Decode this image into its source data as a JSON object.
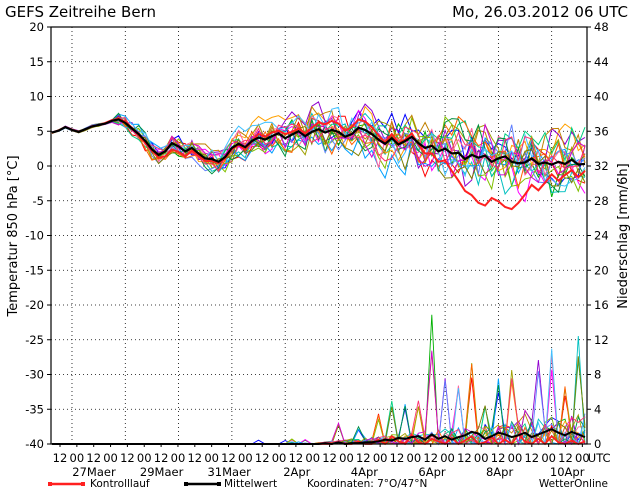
{
  "header": {
    "title": "GEFS  Zeitreihe  Bern",
    "datetime": "Mo, 26.03.2012  06  UTC"
  },
  "footer": {
    "control_label": "Kontrolllauf",
    "mean_label": "Mittelwert",
    "coords": "Koordinaten:  7°O/47°N",
    "brand": "WetterOnline"
  },
  "chart_data": {
    "type": "line",
    "axes": {
      "left": {
        "label": "Temperatur  850  hPa  [°C]",
        "range": [
          -40,
          20
        ],
        "ticks": [
          20,
          15,
          10,
          5,
          0,
          -5,
          -10,
          -15,
          -20,
          -25,
          -30,
          -35,
          -40
        ]
      },
      "right": {
        "label": "Niederschlag  [mm/6h]",
        "range": [
          0,
          48
        ],
        "ticks": [
          48,
          44,
          40,
          36,
          32,
          28,
          24,
          20,
          16,
          12,
          8,
          4,
          0
        ]
      },
      "x": {
        "hour_labels": [
          "12",
          "00",
          "12",
          "00",
          "12",
          "00",
          "12",
          "00",
          "12",
          "00",
          "12",
          "00",
          "12",
          "00",
          "12",
          "00",
          "12",
          "00",
          "12",
          "00",
          "12",
          "00",
          "12",
          "00",
          "12",
          "00",
          "12",
          "00",
          "12",
          "00",
          "12",
          "00",
          "UTC"
        ],
        "date_labels": [
          "27Maer",
          "29Maer",
          "31Maer",
          "2Apr",
          "4Apr",
          "6Apr",
          "8Apr",
          "10Apr"
        ]
      },
      "grid": "dotted"
    },
    "steps_per_day": 4,
    "temperature_ensemble": {
      "colors": [
        "#ff0000",
        "#0000ff",
        "#00b000",
        "#ff00ff",
        "#00c0c0",
        "#ffa000",
        "#9000d0",
        "#80c000",
        "#00a0ff",
        "#c08000",
        "#ff60a0",
        "#00d080",
        "#a0a000",
        "#6080ff",
        "#ff6000",
        "#009040",
        "#d000d0",
        "#40c0ff",
        "#808000",
        "#ff3070"
      ],
      "mean": [
        4.8,
        5.1,
        5.6,
        5.2,
        4.9,
        5.3,
        5.7,
        5.9,
        6.1,
        6.5,
        6.7,
        6.2,
        5.4,
        4.6,
        3.6,
        2.4,
        1.6,
        2.1,
        3.3,
        2.8,
        2.1,
        2.6,
        1.8,
        1.1,
        1.0,
        0.6,
        1.3,
        2.6,
        3.2,
        2.7,
        3.6,
        4.1,
        3.8,
        4.3,
        4.7,
        4.0,
        4.5,
        5.0,
        4.3,
        4.9,
        5.3,
        4.8,
        5.2,
        4.9,
        4.2,
        4.6,
        5.5,
        5.2,
        4.6,
        3.8,
        3.2,
        4.0,
        3.1,
        3.6,
        4.2,
        3.3,
        2.6,
        2.9,
        2.1,
        2.5,
        1.8,
        1.9,
        1.0,
        1.6,
        1.2,
        1.5,
        0.6,
        1.1,
        1.4,
        0.6,
        0.4,
        0.5,
        1.1,
        0.3,
        0.5,
        0.2,
        0.6,
        0.3,
        0.9,
        0.2,
        0.3
      ],
      "control": [
        4.8,
        5.1,
        5.6,
        5.2,
        4.9,
        5.3,
        5.7,
        5.9,
        6.2,
        6.6,
        6.8,
        6.4,
        5.5,
        4.4,
        3.4,
        2.2,
        1.2,
        1.4,
        2.4,
        2.0,
        1.4,
        2.2,
        1.5,
        0.7,
        0.7,
        0.4,
        1.1,
        2.4,
        3.0,
        2.3,
        3.5,
        4.6,
        4.2,
        4.8,
        5.1,
        4.6,
        4.9,
        5.4,
        4.7,
        5.5,
        6.3,
        6.0,
        6.5,
        6.1,
        5.1,
        5.6,
        6.7,
        6.4,
        5.6,
        4.4,
        3.4,
        4.6,
        3.3,
        3.8,
        4.7,
        3.1,
        1.8,
        1.8,
        0.6,
        0.8,
        -0.7,
        -2.1,
        -3.6,
        -4.2,
        -5.3,
        -5.7,
        -4.6,
        -5.1,
        -5.9,
        -6.2,
        -5.3,
        -4.1,
        -2.7,
        -3.5,
        -2.4,
        -1.2,
        -2.1,
        -1.3,
        -0.6,
        -1.6,
        -0.7
      ]
    },
    "precipitation": {
      "mean": [
        0,
        0,
        0,
        0,
        0,
        0,
        0,
        0,
        0,
        0,
        0,
        0,
        0,
        0,
        0,
        0,
        0,
        0,
        0,
        0,
        0,
        0,
        0,
        0,
        0,
        0,
        0,
        0,
        0,
        0,
        0,
        0,
        0,
        0,
        0,
        0,
        0,
        0,
        0,
        0,
        0,
        0.1,
        0,
        0.2,
        0,
        0.1,
        0.1,
        0.2,
        0.2,
        0.3,
        0.5,
        0.4,
        0.7,
        0.6,
        0.8,
        0.9,
        0.5,
        1.1,
        0.6,
        0.9,
        0.5,
        0.8,
        1.0,
        1.4,
        1.2,
        0.6,
        0.9,
        1.3,
        1.1,
        0.8,
        1.0,
        1.3,
        0.8,
        1.1,
        1.4,
        1.7,
        1.3,
        1.0,
        1.4,
        1.1,
        0.8
      ],
      "control": [
        0,
        0,
        0,
        0,
        0,
        0,
        0,
        0,
        0,
        0,
        0,
        0,
        0,
        0,
        0,
        0,
        0,
        0,
        0,
        0,
        0,
        0,
        0,
        0,
        0,
        0,
        0,
        0,
        0,
        0,
        0,
        0,
        0,
        0,
        0,
        0,
        0,
        0,
        0,
        0,
        0,
        0,
        0,
        0.2,
        0,
        0,
        0.3,
        0,
        0,
        0.5,
        0,
        0.9,
        0.3,
        0,
        1.0,
        0.2,
        0,
        0.6,
        0.3,
        0,
        0.7,
        0,
        0.4,
        0.9,
        0,
        0.2,
        0.8,
        0,
        0.5,
        0,
        1.1,
        0.3,
        0,
        0.6,
        0,
        0.9,
        0.2,
        0,
        0.4,
        0,
        0.3
      ],
      "peak_steps": [
        43,
        46,
        49,
        51,
        53,
        55,
        57,
        59,
        61,
        63,
        65,
        67,
        69,
        71,
        73,
        75,
        77,
        79
      ],
      "peak_values": [
        3,
        2,
        4,
        5,
        5,
        6,
        15,
        9,
        7,
        10,
        5,
        8,
        10,
        4,
        11,
        12,
        7,
        13
      ]
    }
  }
}
